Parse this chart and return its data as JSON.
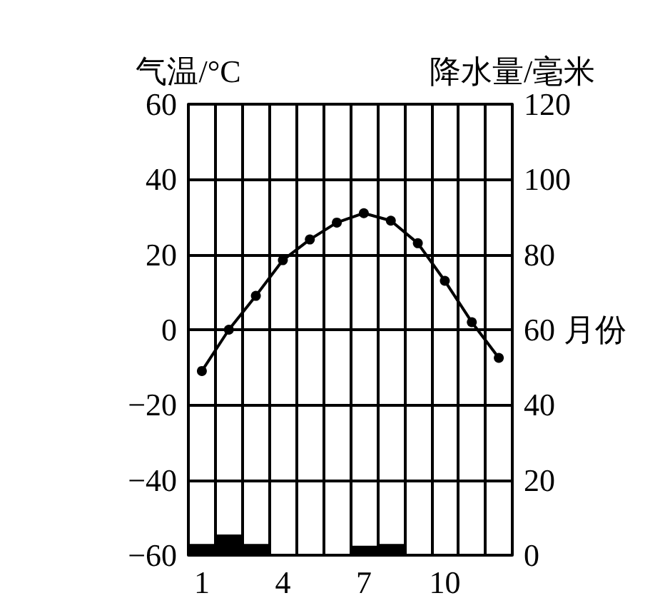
{
  "chart_data": {
    "type": "bar",
    "categories": [
      "1",
      null,
      null,
      "4",
      null,
      null,
      "7",
      null,
      null,
      "10",
      null,
      null
    ],
    "xlabel": "月份",
    "ylabel": "气温/°C",
    "y2label": "降水量/毫米",
    "series": [
      {
        "type": "line",
        "color": "#000000",
        "marker": "circle",
        "values": [
          -11,
          0,
          9,
          18.5,
          24,
          28.5,
          31,
          29,
          23,
          13,
          2,
          -7.5
        ]
      },
      {
        "axis": "y2",
        "color": "#000000",
        "values": [
          3,
          5.5,
          3,
          0,
          0,
          0,
          2.5,
          3,
          0,
          0,
          0,
          0
        ]
      }
    ],
    "ylim": [
      -60,
      60
    ],
    "yticks": [
      -60,
      -40,
      -20,
      0,
      20,
      40,
      60
    ],
    "y2lim": [
      0,
      120
    ],
    "y2ticks": [
      0,
      20,
      40,
      60,
      80,
      100,
      120
    ],
    "grid": true
  }
}
